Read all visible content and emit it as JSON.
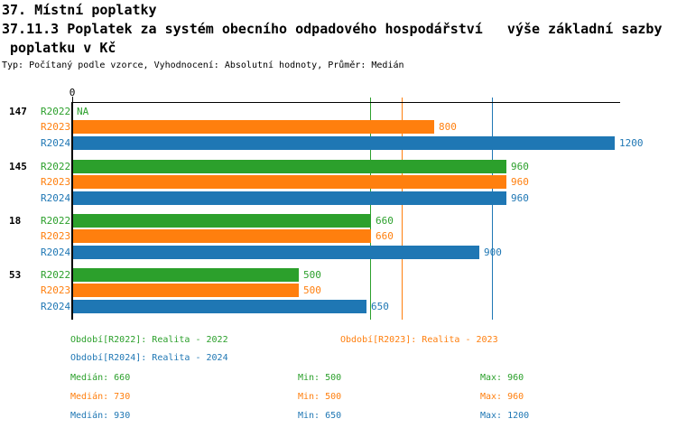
{
  "header": {
    "title_line1": "37. Místní poplatky",
    "title_line2": "37.11.3 Poplatek za systém obecního odpadového hospodářství   výše základní sazby",
    "title_line3": " poplatku v Kč",
    "subtitle": "Typ: Počítaný podle vzorce, Vyhodnocení: Absolutní hodnoty, Průměr: Medián"
  },
  "chart_data": {
    "type": "bar",
    "orientation": "horizontal",
    "x_origin_label": "0",
    "xlim": [
      0,
      1210
    ],
    "grid": false,
    "series_colors": {
      "R2022": "#2ca02c",
      "R2023": "#ff7f0e",
      "R2024": "#1f77b4"
    },
    "groups": [
      {
        "label": "147",
        "rows": [
          {
            "series": "R2022",
            "value": null,
            "label": "NA"
          },
          {
            "series": "R2023",
            "value": 800,
            "label": "800"
          },
          {
            "series": "R2024",
            "value": 1200,
            "label": "1200"
          }
        ]
      },
      {
        "label": "145",
        "rows": [
          {
            "series": "R2022",
            "value": 960,
            "label": "960"
          },
          {
            "series": "R2023",
            "value": 960,
            "label": "960"
          },
          {
            "series": "R2024",
            "value": 960,
            "label": "960"
          }
        ]
      },
      {
        "label": "18",
        "rows": [
          {
            "series": "R2022",
            "value": 660,
            "label": "660"
          },
          {
            "series": "R2023",
            "value": 660,
            "label": "660"
          },
          {
            "series": "R2024",
            "value": 900,
            "label": "900"
          }
        ]
      },
      {
        "label": "53",
        "rows": [
          {
            "series": "R2022",
            "value": 500,
            "label": "500"
          },
          {
            "series": "R2023",
            "value": 500,
            "label": "500"
          },
          {
            "series": "R2024",
            "value": 650,
            "label": "650"
          }
        ]
      }
    ],
    "median_lines": [
      {
        "series": "R2022",
        "value": 660
      },
      {
        "series": "R2023",
        "value": 730
      },
      {
        "series": "R2024",
        "value": 930
      }
    ],
    "legend": [
      {
        "series": "R2022",
        "label": "Období[R2022]: Realita - 2022",
        "col": 0,
        "row": 0
      },
      {
        "series": "R2023",
        "label": "Období[R2023]: Realita - 2023",
        "col": 1,
        "row": 0
      },
      {
        "series": "R2024",
        "label": "Období[R2024]: Realita - 2024",
        "col": 0,
        "row": 1
      }
    ],
    "stats": [
      {
        "series": "R2022",
        "median": "Medián: 660",
        "min": "Min: 500",
        "max": "Max: 960"
      },
      {
        "series": "R2023",
        "median": "Medián: 730",
        "min": "Min: 500",
        "max": "Max: 960"
      },
      {
        "series": "R2024",
        "median": "Medián: 930",
        "min": "Min: 650",
        "max": "Max: 1200"
      }
    ]
  }
}
